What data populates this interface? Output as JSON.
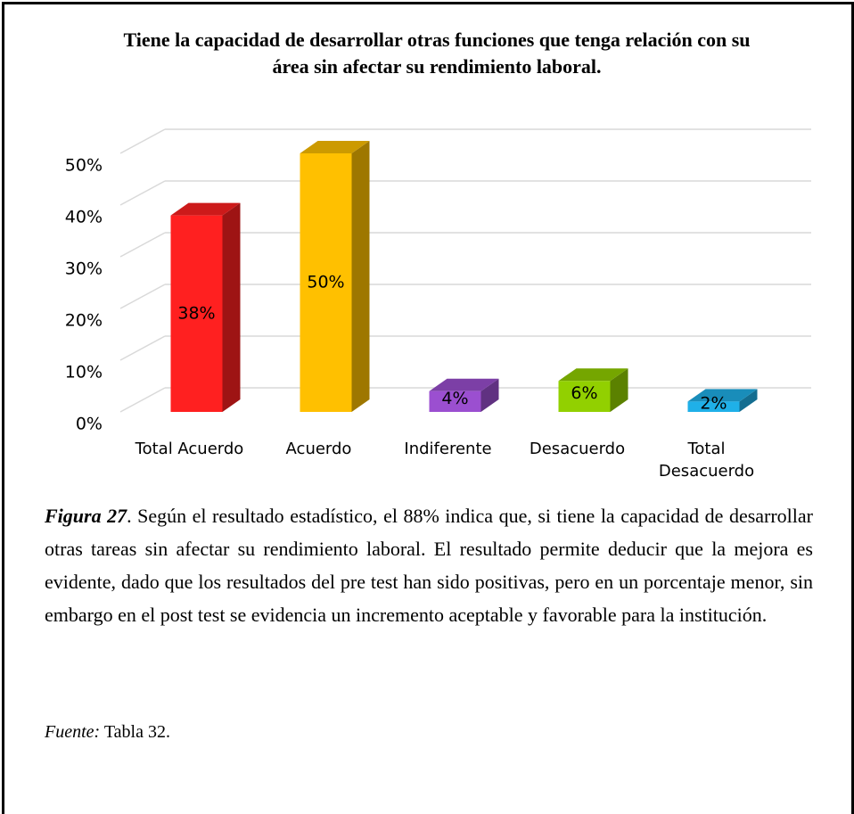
{
  "chart_data": {
    "type": "bar3d",
    "title": "Tiene la capacidad de desarrollar otras funciones que tenga relación con su área sin afectar su rendimiento laboral.",
    "categories": [
      "Total Acuerdo",
      "Acuerdo",
      "Indiferente",
      "Desacuerdo",
      "Total Desacuerdo"
    ],
    "values": [
      38,
      50,
      4,
      6,
      2
    ],
    "value_labels": [
      "38%",
      "50%",
      "4%",
      "6%",
      "2%"
    ],
    "colors": [
      "#ff2020",
      "#ffc000",
      "#9b4fd0",
      "#92d000",
      "#1fb0e8"
    ],
    "ylim": [
      0,
      50
    ],
    "yticks": [
      {
        "value": 0,
        "label": "0%"
      },
      {
        "value": 10,
        "label": "10%"
      },
      {
        "value": 20,
        "label": "20%"
      },
      {
        "value": 30,
        "label": "30%"
      },
      {
        "value": 40,
        "label": "40%"
      },
      {
        "value": 50,
        "label": "50%"
      }
    ],
    "grid": true
  },
  "caption": {
    "label": "Figura 27",
    "text": ". Según el resultado estadístico, el 88% indica que, si tiene la capacidad de desarrollar otras tareas sin afectar su rendimiento laboral. El resultado permite deducir que la mejora es evidente, dado que los resultados del pre test han sido positivas, pero en un porcentaje menor, sin embargo en el post test se evidencia un incremento aceptable y favorable para la institución."
  },
  "source": {
    "label": "Fuente:",
    "text": "Tabla 32."
  }
}
